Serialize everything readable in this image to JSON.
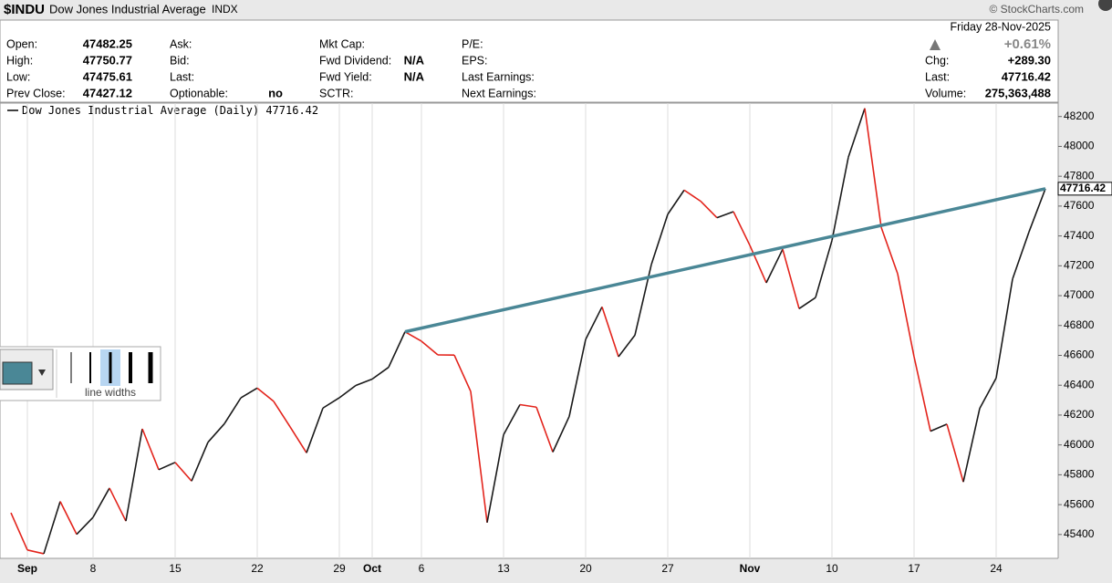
{
  "header": {
    "symbol": "$INDU",
    "name": "Dow Jones Industrial Average",
    "exchange": "INDX",
    "credit": "© StockCharts.com",
    "date": "Friday 28-Nov-2025",
    "change_pct": "+0.61%",
    "columns": [
      [
        {
          "label": "Open:",
          "value": "47482.25"
        },
        {
          "label": "High:",
          "value": "47750.77"
        },
        {
          "label": "Low:",
          "value": "47475.61"
        },
        {
          "label": "Prev Close:",
          "value": "47427.12"
        }
      ],
      [
        {
          "label": "Ask:"
        },
        {
          "label": "Bid:"
        },
        {
          "label": "Last:"
        },
        {
          "label": "Optionable:",
          "value": "no"
        }
      ],
      [
        {
          "label": "Mkt Cap:"
        },
        {
          "label": "Fwd Dividend:",
          "value": "N/A"
        },
        {
          "label": "Fwd Yield:",
          "value": "N/A"
        },
        {
          "label": "SCTR:"
        }
      ],
      [
        {
          "label": "P/E:"
        },
        {
          "label": "EPS:"
        },
        {
          "label": "Last Earnings:"
        },
        {
          "label": "Next Earnings:"
        }
      ],
      [
        {
          "label": "Chg:",
          "value": "+289.30"
        },
        {
          "label": "Last:",
          "value": "47716.42"
        },
        {
          "label": "Volume:",
          "value": "275,363,488"
        }
      ]
    ]
  },
  "toolbar": {
    "label": "line widths"
  },
  "chart_data": {
    "type": "line",
    "series_name": "Dow Jones Industrial Average (Daily)",
    "up_color": "#1a1a1a",
    "down_color": "#e3241c",
    "trendline_color": "#4a8796",
    "categories": [
      null,
      "Sep",
      null,
      null,
      null,
      "8",
      null,
      null,
      null,
      null,
      "15",
      null,
      null,
      null,
      null,
      "22",
      null,
      null,
      null,
      null,
      "29",
      null,
      "Oct",
      null,
      null,
      "6",
      null,
      null,
      null,
      null,
      "13",
      null,
      null,
      null,
      null,
      "20",
      null,
      null,
      null,
      null,
      "27",
      null,
      null,
      null,
      null,
      "Nov",
      null,
      null,
      null,
      null,
      "10",
      null,
      null,
      null,
      null,
      "17",
      null,
      null,
      null,
      null,
      "24",
      null,
      null,
      null
    ],
    "values": [
      45545,
      45296,
      45271,
      45621,
      45401,
      45515,
      45711,
      45490,
      46108,
      45834,
      45883,
      45758,
      46018,
      46142,
      46315,
      46381,
      46292,
      46121,
      45947,
      46247,
      46316,
      46398,
      46441,
      46520,
      46758,
      46695,
      46603,
      46602,
      46358,
      45480,
      46068,
      46270,
      46253,
      45952,
      46191,
      46707,
      46925,
      46591,
      46735,
      47208,
      47545,
      47707,
      47633,
      47522,
      47563,
      47337,
      47086,
      47311,
      46913,
      46987,
      47369,
      47928,
      48255,
      47458,
      47147,
      46591,
      46092,
      46139,
      45752,
      46245,
      46448,
      47112,
      47427,
      47716.42
    ],
    "ylim": [
      45240,
      48290
    ],
    "yticks": [
      45400,
      45600,
      45800,
      46000,
      46200,
      46400,
      46600,
      46800,
      47000,
      47200,
      47400,
      47600,
      47800,
      48000,
      48200
    ],
    "grid": true
  }
}
